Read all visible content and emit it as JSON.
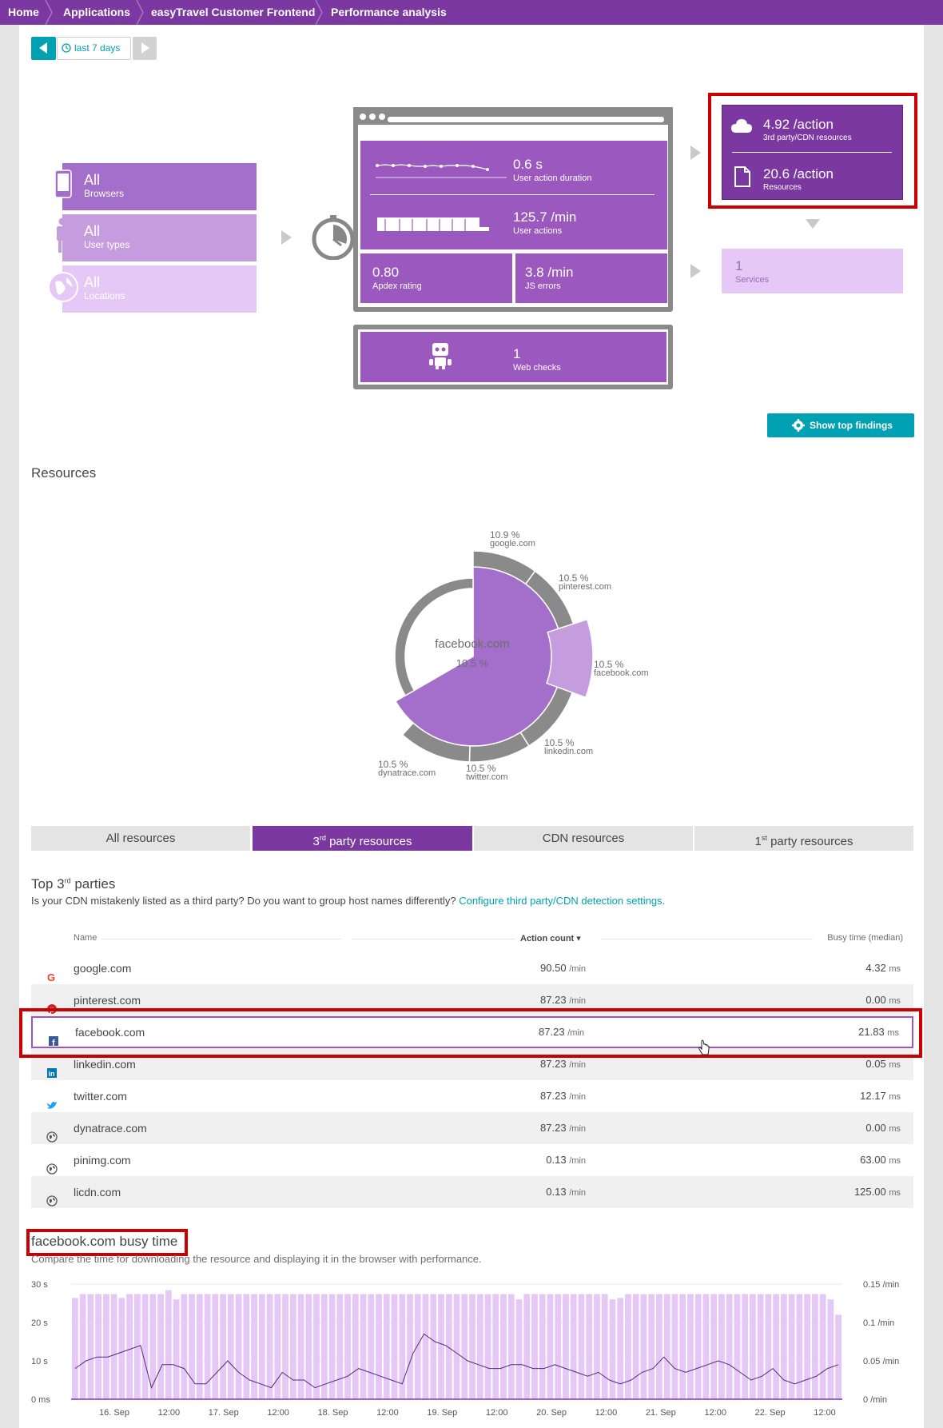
{
  "breadcrumb": [
    "Home",
    "Applications",
    "easyTravel Customer Frontend",
    "Performance analysis"
  ],
  "timeframe": {
    "label": "last 7 days"
  },
  "filters": [
    {
      "value": "All",
      "label": "Browsers",
      "icon": "mobile-icon"
    },
    {
      "value": "All",
      "label": "User types",
      "icon": "person-icon"
    },
    {
      "value": "All",
      "label": "Locations",
      "icon": "globe-icon"
    }
  ],
  "metrics": {
    "duration_value": "0.6 s",
    "duration_label": "User action duration",
    "actions_value": "125.7 /min",
    "actions_label": "User actions",
    "apdex_value": "0.80",
    "apdex_label": "Apdex rating",
    "errors_value": "3.8 /min",
    "errors_label": "JS errors",
    "webchecks_value": "1",
    "webchecks_label": "Web checks"
  },
  "resources_card": {
    "thirdparty_value": "4.92 /action",
    "thirdparty_label": "3rd party/CDN resources",
    "resources_value": "20.6 /action",
    "resources_label": "Resources"
  },
  "services_card": {
    "value": "1",
    "label": "Services"
  },
  "show_top_findings": "Show top findings",
  "resources_title": "Resources",
  "donut": {
    "center_name": "facebook.com",
    "center_value": "10.5 %",
    "slices": [
      {
        "pct": "10.9 %",
        "name": "google.com"
      },
      {
        "pct": "10.5 %",
        "name": "pinterest.com"
      },
      {
        "pct": "10.5 %",
        "name": "facebook.com"
      },
      {
        "pct": "10.5 %",
        "name": "linkedin.com"
      },
      {
        "pct": "10.5 %",
        "name": "twitter.com"
      },
      {
        "pct": "10.5 %",
        "name": "dynatrace.com"
      }
    ]
  },
  "tabs": [
    {
      "label": "All resources"
    },
    {
      "pre": "3",
      "sup": "rd",
      "label": " party resources"
    },
    {
      "label": "CDN resources"
    },
    {
      "pre": "1",
      "sup": "st",
      "label": " party resources"
    }
  ],
  "top_parties": {
    "title_pre": "Top 3",
    "title_sup": "rd",
    "title_post": " parties",
    "question": "Is your CDN mistakenly listed as a third party? Do you want to group host names differently?",
    "link": "Configure third party/CDN detection settings.",
    "col_name": "Name",
    "col_action": "Action count ▾",
    "col_busy": "Busy time (median)",
    "rows": [
      {
        "name": "google.com",
        "actions": "90.50",
        "unit": "/min",
        "busy": "4.32",
        "busy_unit": "ms",
        "icon": "google-icon"
      },
      {
        "name": "pinterest.com",
        "actions": "87.23",
        "unit": "/min",
        "busy": "0.00",
        "busy_unit": "ms",
        "icon": "pinterest-icon"
      },
      {
        "name": "facebook.com",
        "actions": "87.23",
        "unit": "/min",
        "busy": "21.83",
        "busy_unit": "ms",
        "icon": "facebook-icon"
      },
      {
        "name": "linkedin.com",
        "actions": "87.23",
        "unit": "/min",
        "busy": "0.05",
        "busy_unit": "ms",
        "icon": "linkedin-icon"
      },
      {
        "name": "twitter.com",
        "actions": "87.23",
        "unit": "/min",
        "busy": "12.17",
        "busy_unit": "ms",
        "icon": "twitter-icon"
      },
      {
        "name": "dynatrace.com",
        "actions": "87.23",
        "unit": "/min",
        "busy": "0.00",
        "busy_unit": "ms",
        "icon": "globe-icon"
      },
      {
        "name": "pinimg.com",
        "actions": "0.13",
        "unit": "/min",
        "busy": "63.00",
        "busy_unit": "ms",
        "icon": "globe-icon"
      },
      {
        "name": "licdn.com",
        "actions": "0.13",
        "unit": "/min",
        "busy": "125.00",
        "busy_unit": "ms",
        "icon": "globe-icon"
      }
    ]
  },
  "busy_section": {
    "title": "facebook.com busy time",
    "subtitle": "Compare the time for downloading the resource and displaying it in the browser with performance."
  },
  "chart_data": {
    "type": "bar",
    "y_left_ticks": [
      "30 s",
      "20 s",
      "10 s",
      "0 ms"
    ],
    "y_right_ticks": [
      "0.15 /min",
      "0.1 /min",
      "0.05 /min",
      "0 /min"
    ],
    "x_ticks": [
      "16. Sep",
      "12:00",
      "17. Sep",
      "12:00",
      "18. Sep",
      "12:00",
      "19. Sep",
      "12:00",
      "20. Sep",
      "12:00",
      "21. Sep",
      "12:00",
      "22. Sep",
      "12:00"
    ],
    "bars_per_min": [
      0.132,
      0.137,
      0.137,
      0.137,
      0.137,
      0.137,
      0.132,
      0.137,
      0.137,
      0.137,
      0.137,
      0.137,
      0.142,
      0.13,
      0.137,
      0.137,
      0.137,
      0.137,
      0.137,
      0.137,
      0.137,
      0.137,
      0.137,
      0.137,
      0.137,
      0.137,
      0.137,
      0.137,
      0.137,
      0.137,
      0.137,
      0.137,
      0.137,
      0.137,
      0.137,
      0.137,
      0.137,
      0.137,
      0.137,
      0.137,
      0.137,
      0.137,
      0.137,
      0.137,
      0.137,
      0.137,
      0.137,
      0.137,
      0.137,
      0.137,
      0.137,
      0.137,
      0.137,
      0.137,
      0.137,
      0.137,
      0.137,
      0.13,
      0.137,
      0.137,
      0.137,
      0.137,
      0.137,
      0.137,
      0.137,
      0.137,
      0.137,
      0.137,
      0.137,
      0.13,
      0.132,
      0.137,
      0.137,
      0.137,
      0.137,
      0.137,
      0.137,
      0.137,
      0.137,
      0.137,
      0.137,
      0.137,
      0.137,
      0.137,
      0.137,
      0.137,
      0.137,
      0.137,
      0.137,
      0.137,
      0.137,
      0.137,
      0.137,
      0.137,
      0.137,
      0.137,
      0.137,
      0.13,
      0.11
    ],
    "line_s": [
      8,
      10,
      11,
      11,
      12,
      13,
      14,
      3,
      9,
      9,
      8,
      4,
      4,
      7,
      10,
      7,
      5,
      4,
      3,
      7,
      5,
      5,
      3,
      4,
      5,
      6,
      8,
      7,
      6,
      5,
      4,
      12,
      17,
      15,
      14,
      12,
      10,
      9,
      8,
      8,
      9,
      9,
      8,
      8,
      9,
      8,
      7,
      6,
      7,
      5,
      4,
      5,
      7,
      8,
      11,
      8,
      7,
      8,
      9,
      10,
      9,
      7,
      5,
      6,
      8,
      5,
      4,
      5,
      6,
      8,
      9
    ]
  }
}
